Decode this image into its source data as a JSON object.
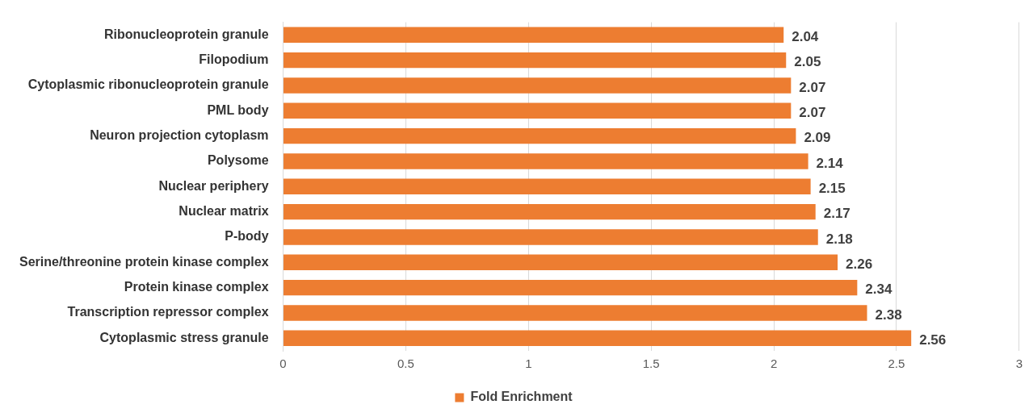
{
  "chart_data": {
    "type": "bar",
    "orientation": "horizontal",
    "categories": [
      "Ribonucleoprotein granule",
      "Filopodium",
      "Cytoplasmic ribonucleoprotein granule",
      "PML body",
      "Neuron projection cytoplasm",
      "Polysome",
      "Nuclear periphery",
      "Nuclear matrix",
      "P-body",
      "Serine/threonine protein kinase complex",
      "Protein kinase complex",
      "Transcription repressor complex",
      "Cytoplasmic stress granule"
    ],
    "series": [
      {
        "name": "Fold Enrichment",
        "color": "#ed7d31",
        "values": [
          2.04,
          2.05,
          2.07,
          2.07,
          2.09,
          2.14,
          2.15,
          2.17,
          2.18,
          2.26,
          2.34,
          2.38,
          2.56
        ]
      }
    ],
    "xlim": [
      0,
      3
    ],
    "xticks": [
      0,
      0.5,
      1,
      1.5,
      2,
      2.5,
      3
    ],
    "grid": "x",
    "legend": "bottom",
    "data_labels": true
  }
}
